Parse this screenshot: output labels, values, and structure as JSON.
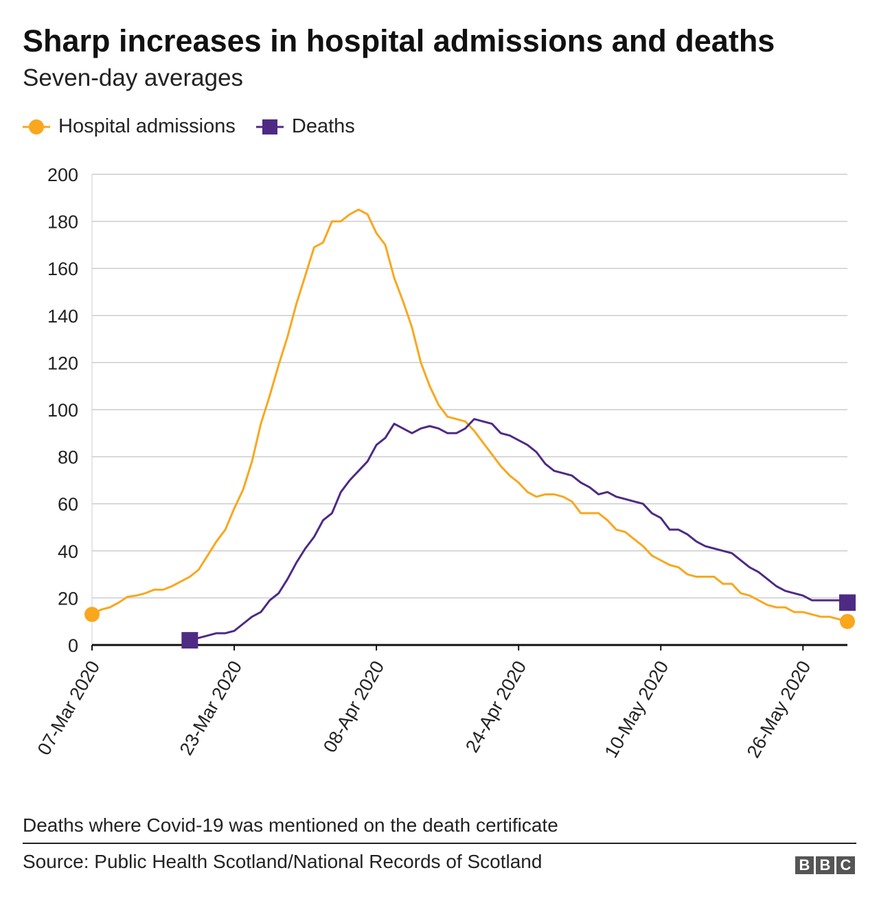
{
  "chart_data": {
    "type": "line",
    "title": "Sharp increases in hospital admissions and deaths",
    "subtitle": "Seven-day averages",
    "ylim": [
      0,
      200
    ],
    "yticks": [
      0,
      20,
      40,
      60,
      80,
      100,
      120,
      140,
      160,
      180,
      200
    ],
    "xtick_labels": [
      "07-Mar 2020",
      "23-Mar 2020",
      "08-Apr 2020",
      "24-Apr 2020",
      "10-May 2020",
      "26-May 2020"
    ],
    "xtick_dates": [
      "2020-03-07",
      "2020-03-23",
      "2020-04-08",
      "2020-04-24",
      "2020-05-10",
      "2020-05-26"
    ],
    "grid": true,
    "legend_placement": "top-left",
    "x": [
      "2020-03-07",
      "2020-03-08",
      "2020-03-09",
      "2020-03-10",
      "2020-03-11",
      "2020-03-12",
      "2020-03-13",
      "2020-03-14",
      "2020-03-15",
      "2020-03-16",
      "2020-03-17",
      "2020-03-18",
      "2020-03-19",
      "2020-03-20",
      "2020-03-21",
      "2020-03-22",
      "2020-03-23",
      "2020-03-24",
      "2020-03-25",
      "2020-03-26",
      "2020-03-27",
      "2020-03-28",
      "2020-03-29",
      "2020-03-30",
      "2020-03-31",
      "2020-04-01",
      "2020-04-02",
      "2020-04-03",
      "2020-04-04",
      "2020-04-05",
      "2020-04-06",
      "2020-04-07",
      "2020-04-08",
      "2020-04-09",
      "2020-04-10",
      "2020-04-11",
      "2020-04-12",
      "2020-04-13",
      "2020-04-14",
      "2020-04-15",
      "2020-04-16",
      "2020-04-17",
      "2020-04-18",
      "2020-04-19",
      "2020-04-20",
      "2020-04-21",
      "2020-04-22",
      "2020-04-23",
      "2020-04-24",
      "2020-04-25",
      "2020-04-26",
      "2020-04-27",
      "2020-04-28",
      "2020-04-29",
      "2020-04-30",
      "2020-05-01",
      "2020-05-02",
      "2020-05-03",
      "2020-05-04",
      "2020-05-05",
      "2020-05-06",
      "2020-05-07",
      "2020-05-08",
      "2020-05-09",
      "2020-05-10",
      "2020-05-11",
      "2020-05-12",
      "2020-05-13",
      "2020-05-14",
      "2020-05-15",
      "2020-05-16",
      "2020-05-17",
      "2020-05-18",
      "2020-05-19",
      "2020-05-20",
      "2020-05-21",
      "2020-05-22",
      "2020-05-23",
      "2020-05-24",
      "2020-05-25",
      "2020-05-26",
      "2020-05-27",
      "2020-05-28",
      "2020-05-29",
      "2020-05-30",
      "2020-05-31"
    ],
    "series": [
      {
        "name": "Hospital admissions",
        "color": "#f9a71d",
        "marker": "circle",
        "values": [
          13,
          15,
          16,
          18,
          20.5,
          21,
          22,
          23.5,
          23.5,
          25,
          27,
          29,
          32,
          38,
          44,
          49,
          58,
          66,
          78,
          94,
          106,
          119,
          131,
          145,
          157,
          169,
          171,
          180,
          180,
          183,
          185,
          183,
          175,
          170,
          156,
          146,
          135,
          120,
          110,
          102,
          97,
          96,
          95,
          91,
          86,
          81,
          76,
          72,
          69,
          65,
          63,
          64,
          64,
          63,
          61,
          56,
          56,
          56,
          53,
          49,
          48,
          45,
          42,
          38,
          36,
          34,
          33,
          30,
          29,
          29,
          29,
          26,
          26,
          22,
          21,
          19,
          17,
          16,
          16,
          14,
          14,
          13,
          12,
          12,
          11,
          10
        ]
      },
      {
        "name": "Deaths",
        "color": "#4e2a84",
        "marker": "square",
        "values": [
          null,
          null,
          null,
          null,
          null,
          null,
          null,
          null,
          null,
          null,
          null,
          2,
          3,
          4,
          5,
          5,
          6,
          9,
          12,
          14,
          19,
          22,
          28,
          35,
          41,
          46,
          53,
          56,
          65,
          70,
          74,
          78,
          85,
          88,
          94,
          92,
          90,
          92,
          93,
          92,
          90,
          90,
          92,
          96,
          95,
          94,
          90,
          89,
          87,
          85,
          82,
          77,
          74,
          73,
          72,
          69,
          67,
          64,
          65,
          63,
          62,
          61,
          60,
          56,
          54,
          49,
          49,
          47,
          44,
          42,
          41,
          40,
          39,
          36,
          33,
          31,
          28,
          25,
          23,
          22,
          21,
          19,
          19,
          19,
          19,
          18
        ]
      }
    ]
  },
  "footer": {
    "note": "Deaths where Covid-19 was mentioned on the death certificate",
    "source": "Source: Public Health Scotland/National Records of Scotland",
    "logo": "BBC"
  }
}
